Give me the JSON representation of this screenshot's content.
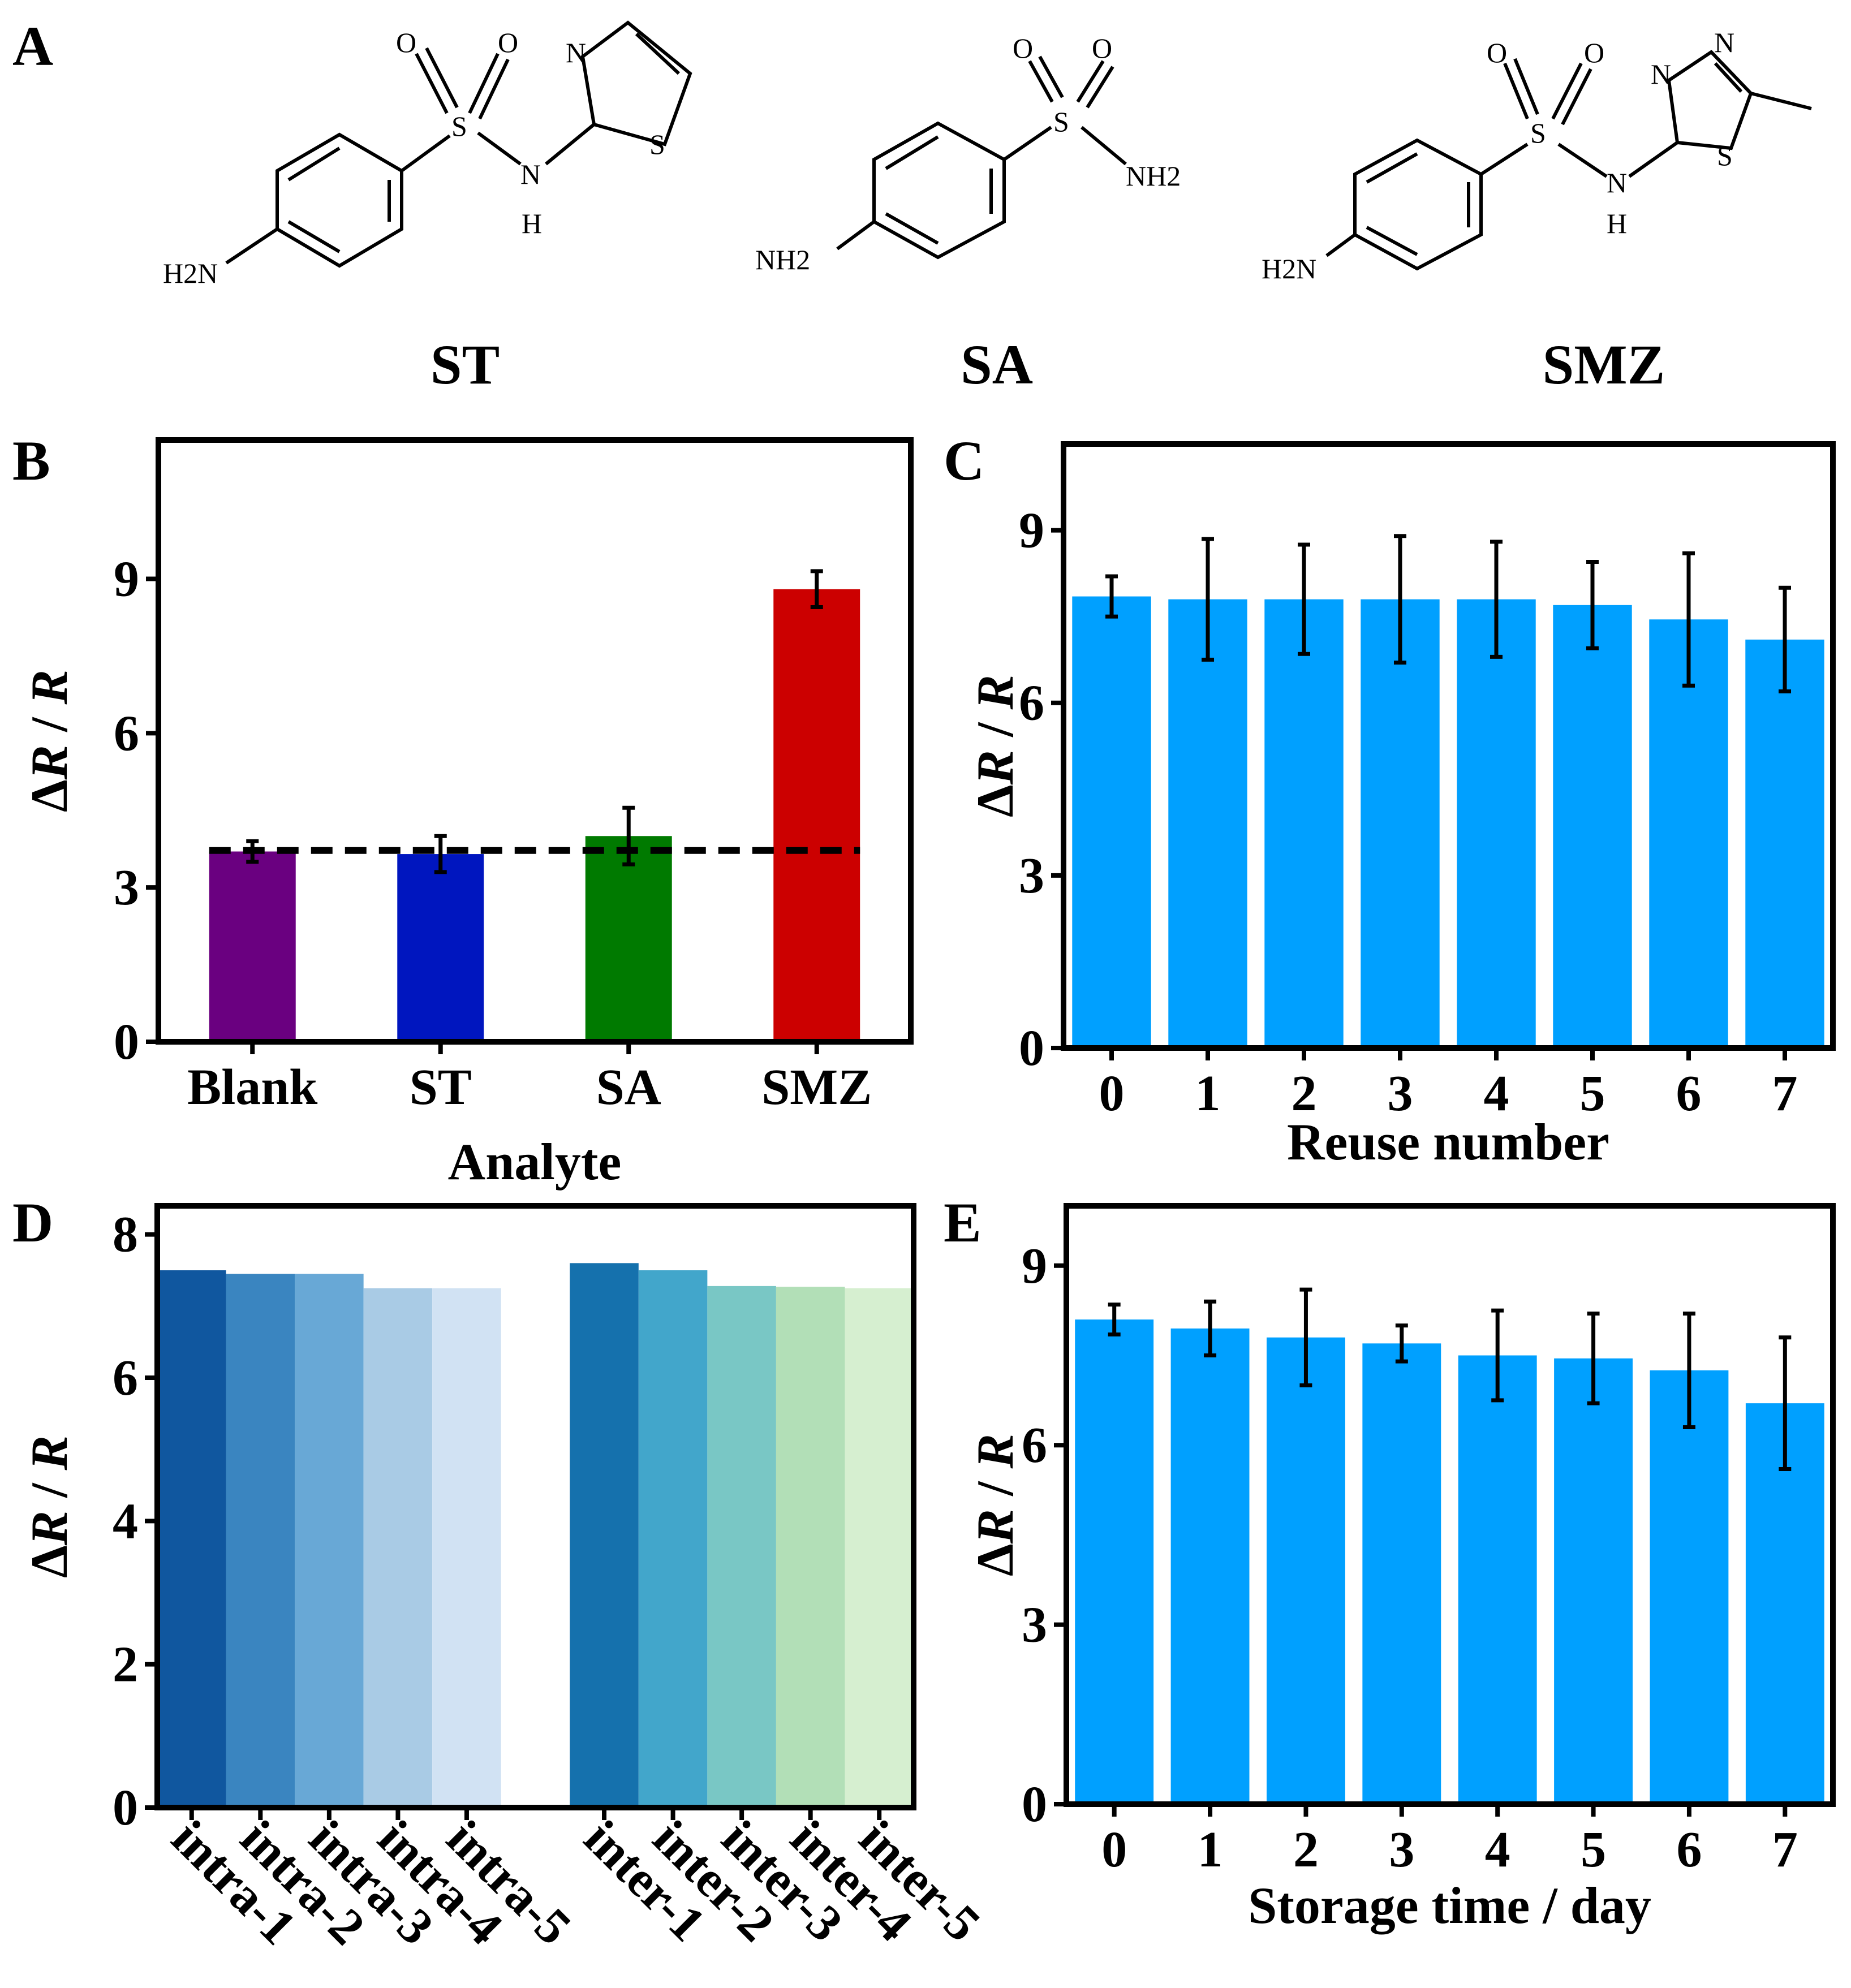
{
  "figure": {
    "panel_labels": [
      "A",
      "B",
      "C",
      "D",
      "E"
    ]
  },
  "molecules": [
    {
      "name": "ST",
      "atoms": {
        "o1": "O",
        "o2": "O",
        "s_sulf": "S",
        "n_amide": "N",
        "h_amide": "H",
        "n_ring": "N",
        "s_ring": "S",
        "amine": "H2N"
      }
    },
    {
      "name": "SA",
      "atoms": {
        "o1": "O",
        "o2": "O",
        "s_sulf": "S",
        "nh2": "NH2",
        "amine": "NH2"
      }
    },
    {
      "name": "SMZ",
      "atoms": {
        "o1": "O",
        "o2": "O",
        "s_sulf": "S",
        "n_amide": "N",
        "h_amide": "H",
        "n_ring1": "N",
        "n_ring2": "N",
        "s_ring": "S",
        "amine": "H2N"
      }
    }
  ],
  "chart_data": [
    {
      "panel": "B",
      "type": "bar",
      "title": "",
      "xlabel": "Analyte",
      "ylabel": "ΔR / R",
      "categories": [
        "Blank",
        "ST",
        "SA",
        "SMZ"
      ],
      "values": [
        3.7,
        3.65,
        4.0,
        8.8
      ],
      "errors": [
        0.2,
        0.35,
        0.55,
        0.35
      ],
      "colors": [
        "#6a0080",
        "#0016bf",
        "#007a00",
        "#cc0000"
      ],
      "ylim": [
        0,
        11.7
      ],
      "yticks": [
        0,
        3,
        6,
        9
      ],
      "reference_line": {
        "value": 3.72,
        "style": "dashed"
      }
    },
    {
      "panel": "C",
      "type": "bar",
      "title": "",
      "xlabel": "Reuse number",
      "ylabel": "ΔR / R",
      "categories": [
        "0",
        "1",
        "2",
        "3",
        "4",
        "5",
        "6",
        "7"
      ],
      "values": [
        7.85,
        7.8,
        7.8,
        7.8,
        7.8,
        7.7,
        7.45,
        7.1
      ],
      "errors": [
        0.35,
        1.05,
        0.95,
        1.1,
        1.0,
        0.75,
        1.15,
        0.9
      ],
      "colors": [
        "#00a0ff"
      ],
      "ylim": [
        0,
        10.5
      ],
      "yticks": [
        0,
        3,
        6,
        9
      ]
    },
    {
      "panel": "D",
      "type": "bar",
      "title": "",
      "xlabel": "",
      "ylabel": "ΔR / R",
      "categories": [
        "intra-1",
        "intra-2",
        "intra-3",
        "intra-4",
        "intra-5",
        "inter-1",
        "inter-2",
        "inter-3",
        "inter-4",
        "inter-5"
      ],
      "values": [
        7.5,
        7.45,
        7.45,
        7.25,
        7.25,
        7.6,
        7.5,
        7.28,
        7.27,
        7.25
      ],
      "colors": [
        "#10579f",
        "#3a85c0",
        "#68a8d6",
        "#a9cbe5",
        "#d1e2f3",
        "#1571ad",
        "#42a6cb",
        "#79c7c5",
        "#b2dfb7",
        "#d6efd0"
      ],
      "ylim": [
        0,
        8.4
      ],
      "yticks": [
        0,
        2,
        4,
        6,
        8
      ]
    },
    {
      "panel": "E",
      "type": "bar",
      "title": "",
      "xlabel": "Storage time / day",
      "ylabel": "ΔR / R",
      "categories": [
        "0",
        "1",
        "2",
        "3",
        "4",
        "5",
        "6",
        "7"
      ],
      "values": [
        8.1,
        7.95,
        7.8,
        7.7,
        7.5,
        7.45,
        7.25,
        6.7
      ],
      "errors": [
        0.25,
        0.45,
        0.8,
        0.3,
        0.75,
        0.75,
        0.95,
        1.1
      ],
      "colors": [
        "#00a0ff"
      ],
      "ylim": [
        0,
        10.0
      ],
      "yticks": [
        0,
        3,
        6,
        9
      ]
    }
  ]
}
